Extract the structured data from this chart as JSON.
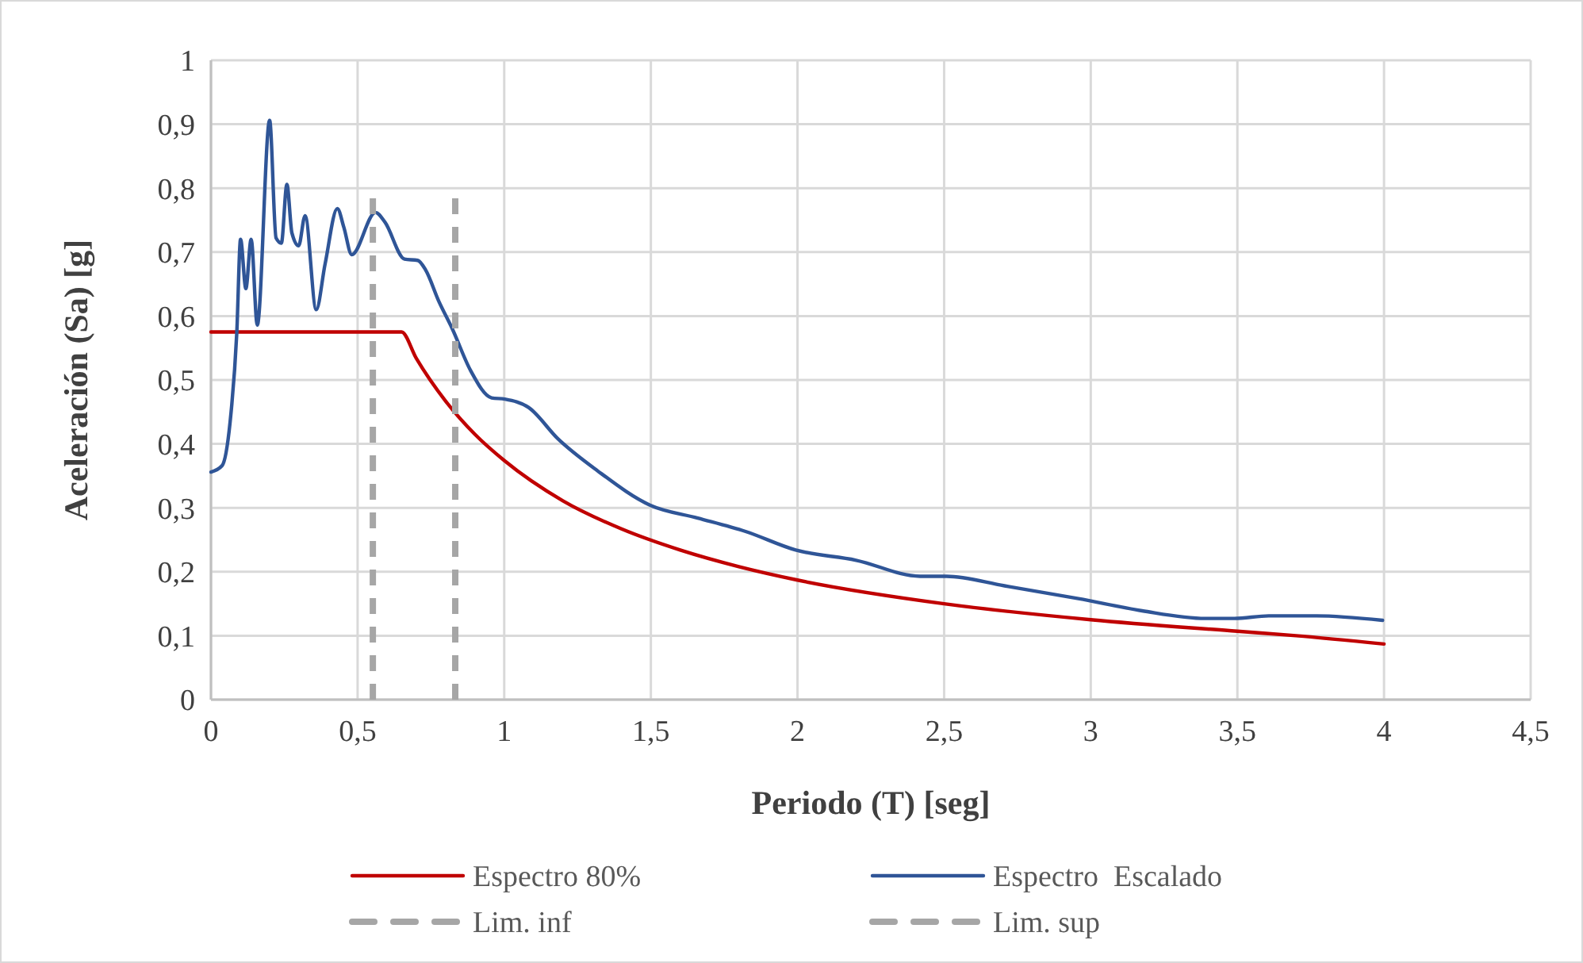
{
  "chart_data": {
    "type": "line",
    "xlabel": "Periodo (T) [seg]",
    "ylabel": "Aceleración (Sa) [g]",
    "xlim": [
      0,
      4.5
    ],
    "xticks": [
      0,
      {
        "value": 0.5,
        "label": "0,5"
      },
      1,
      {
        "value": 1.5,
        "label": "1,5"
      },
      2,
      {
        "value": 2.5,
        "label": "2,5"
      },
      3,
      {
        "value": 3.5,
        "label": "3,5"
      },
      4,
      {
        "value": 4.5,
        "label": "4,5"
      }
    ],
    "ylim": [
      0,
      1
    ],
    "yticks": [
      0,
      {
        "value": 0.1,
        "label": "0,1"
      },
      {
        "value": 0.2,
        "label": "0,2"
      },
      {
        "value": 0.3,
        "label": "0,3"
      },
      {
        "value": 0.4,
        "label": "0,4"
      },
      {
        "value": 0.5,
        "label": "0,5"
      },
      {
        "value": 0.6,
        "label": "0,6"
      },
      {
        "value": 0.7,
        "label": "0,7"
      },
      {
        "value": 0.8,
        "label": "0,8"
      },
      {
        "value": 0.9,
        "label": "0,9"
      },
      1
    ],
    "grid": true,
    "legend": "bottom",
    "marker": "none",
    "series": [
      {
        "name": "Espectro 80%",
        "color": "#c00000",
        "line_style": "solid",
        "x": [
          0,
          0.65,
          0.7,
          0.8,
          0.9,
          1.0,
          1.2,
          1.4,
          1.6,
          1.8,
          2.0,
          2.5,
          3.0,
          3.5,
          3.7,
          4.0
        ],
        "values": [
          0.575,
          0.575,
          0.534,
          0.467,
          0.415,
          0.374,
          0.311,
          0.267,
          0.234,
          0.208,
          0.187,
          0.15,
          0.125,
          0.107,
          0.1,
          0.087
        ]
      },
      {
        "name": "Espectro  Escalado",
        "color": "#2f5597",
        "line_style": "solid",
        "x": [
          0,
          0.038,
          0.065,
          0.088,
          0.101,
          0.119,
          0.137,
          0.158,
          0.2,
          0.222,
          0.24,
          0.259,
          0.276,
          0.299,
          0.321,
          0.359,
          0.389,
          0.431,
          0.453,
          0.48,
          0.561,
          0.593,
          0.66,
          0.705,
          0.732,
          0.777,
          0.822,
          0.885,
          0.957,
          1.002,
          1.083,
          1.183,
          1.318,
          1.498,
          1.66,
          1.823,
          1.994,
          2.2,
          2.418,
          2.508,
          2.706,
          2.958,
          3.175,
          3.391,
          3.49,
          3.607,
          3.77,
          3.995
        ],
        "values": [
          0.356,
          0.366,
          0.433,
          0.573,
          0.72,
          0.643,
          0.72,
          0.586,
          0.906,
          0.722,
          0.714,
          0.806,
          0.73,
          0.71,
          0.757,
          0.61,
          0.681,
          0.768,
          0.739,
          0.696,
          0.762,
          0.747,
          0.689,
          0.687,
          0.672,
          0.623,
          0.581,
          0.515,
          0.472,
          0.47,
          0.457,
          0.408,
          0.358,
          0.304,
          0.284,
          0.263,
          0.234,
          0.218,
          0.193,
          0.193,
          0.178,
          0.158,
          0.139,
          0.127,
          0.127,
          0.131,
          0.131,
          0.124
        ]
      },
      {
        "name": "Lim. inf",
        "color": "#a6a6a6",
        "line_style": "dashed",
        "x": [
          0.552,
          0.552
        ],
        "values": [
          0,
          0.8
        ]
      },
      {
        "name": "Lim. sup",
        "color": "#a6a6a6",
        "line_style": "dashed",
        "x": [
          0.833,
          0.833
        ],
        "values": [
          0,
          0.8
        ]
      }
    ]
  }
}
